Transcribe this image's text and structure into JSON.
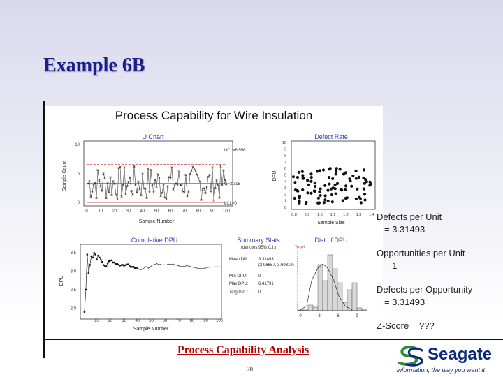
{
  "slide": {
    "title": "Example 6B",
    "footer": "Process Capability Analysis",
    "page_number": "70"
  },
  "notes": [
    {
      "label": "Defects per Unit",
      "value": "=   3.31493"
    },
    {
      "label": "Opportunities per Unit",
      "value": "=   1"
    },
    {
      "label": "Defects per Opportunity",
      "value": "=  3.31493"
    }
  ],
  "zscore": "Z-Score = ???",
  "logo": {
    "name": "Seagate",
    "tagline": "information, the way you want it",
    "color": "#0a2a7a"
  },
  "figure": {
    "title": "Process Capability for Wire Insulation",
    "u_chart": {
      "title": "U Chart",
      "xlabel": "Sample Number",
      "ylabel": "Sample Count",
      "ucl_label": "UCL=6.556",
      "center_label": "U=3.315",
      "lcl_label": "LCL=0",
      "ucl_color": "#cc2222",
      "center_color": "#22aa22",
      "lcl_color": "#cc2222",
      "yticks": [
        "0",
        "5",
        "10"
      ],
      "xticks": [
        "0",
        "10",
        "20",
        "30",
        "40",
        "50",
        "60",
        "70",
        "80",
        "90",
        "100"
      ]
    },
    "defect_rate": {
      "title": "Defect Rate",
      "xlabel": "Sample Size",
      "ylabel": "DPU",
      "yticks": [
        "0",
        "1",
        "2",
        "3",
        "4",
        "5",
        "6",
        "7",
        "8",
        "9",
        "10"
      ],
      "xticks": [
        "0.8",
        "0.9",
        "1.0",
        "1.1",
        "1.2",
        "1.3",
        "1.4"
      ]
    },
    "cumulative": {
      "title": "Cumulative DPU",
      "xlabel": "Sample Number",
      "ylabel": "DPU",
      "yticks": [
        "2.0",
        "2.5",
        "3.0",
        "3.5"
      ],
      "xticks": [
        "10",
        "20",
        "30",
        "40",
        "50",
        "60",
        "70",
        "80",
        "90",
        "100"
      ]
    },
    "summary": {
      "title": "Summary Stats",
      "subtitle": "(denotes 95% C.I.)",
      "rows": [
        {
          "label": "Mean DPU:",
          "value": "3.31493"
        },
        {
          "label": "",
          "value": "(2.96657, 3.69319)"
        },
        {
          "label": "Min DPU:",
          "value": "0"
        },
        {
          "label": "Max DPU:",
          "value": "6.41791"
        },
        {
          "label": "Targ DPU:",
          "value": "0"
        }
      ]
    },
    "dist": {
      "title": "Dist of DPU",
      "target_label": "Target",
      "xticks": [
        "0",
        "3",
        "6",
        "9"
      ]
    }
  }
}
